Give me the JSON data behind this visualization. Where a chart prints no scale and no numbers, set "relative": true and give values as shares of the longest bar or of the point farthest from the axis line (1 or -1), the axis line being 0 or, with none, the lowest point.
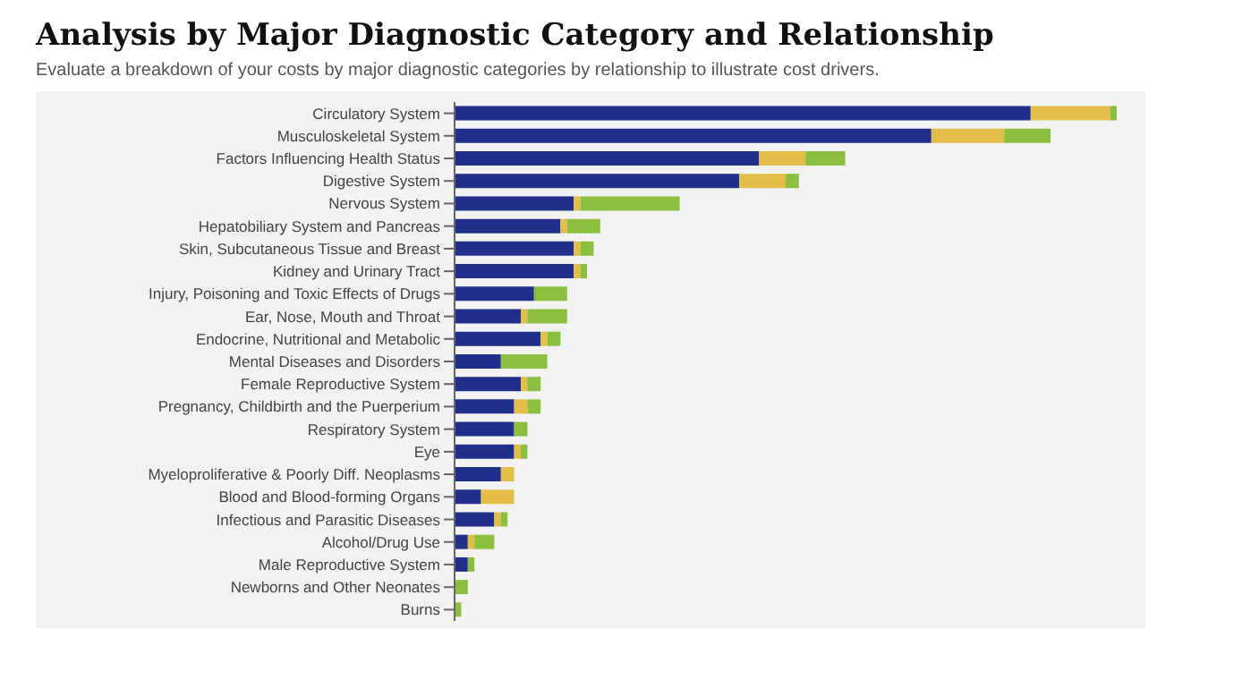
{
  "chart_data": {
    "type": "bar",
    "orientation": "horizontal",
    "stacked": true,
    "relative": true,
    "title": "Analysis by Major Diagnostic Category and Relationship",
    "subtitle": "Evaluate a breakdown of your costs by major diagnostic categories by relationship to illustrate cost drivers.",
    "categories": [
      "Circulatory System",
      "Musculoskeletal System",
      "Factors Influencing Health Status",
      "Digestive System",
      "Nervous System",
      "Hepatobiliary System and Pancreas",
      "Skin, Subcutaneous Tissue and Breast",
      "Kidney and Urinary Tract",
      "Injury, Poisoning and Toxic Effects of Drugs",
      "Ear, Nose, Mouth and Throat",
      "Endocrine, Nutritional and Metabolic",
      "Mental Diseases and Disorders",
      "Female Reproductive System",
      "Pregnancy, Childbirth and the Puerperium",
      "Respiratory System",
      "Eye",
      "Myeloproliferative & Poorly Diff. Neoplasms",
      "Blood and Blood-forming Organs",
      "Infectious and Parasitic Diseases",
      "Alcohol/Drug Use",
      "Male Reproductive System",
      "Newborns and Other Neonates",
      "Burns"
    ],
    "series": [
      {
        "color": "#1f2f8a",
        "values": [
          0.87,
          0.72,
          0.46,
          0.43,
          0.18,
          0.16,
          0.18,
          0.18,
          0.12,
          0.1,
          0.13,
          0.07,
          0.1,
          0.09,
          0.09,
          0.09,
          0.07,
          0.04,
          0.06,
          0.02,
          0.02,
          0,
          0
        ]
      },
      {
        "color": "#e3bf4a",
        "values": [
          0.12,
          0.11,
          0.07,
          0.07,
          0.01,
          0.01,
          0.01,
          0.01,
          0,
          0.01,
          0.01,
          0,
          0.01,
          0.02,
          0,
          0.01,
          0.02,
          0.05,
          0.01,
          0.01,
          0,
          0,
          0
        ]
      },
      {
        "color": "#8cbf3f",
        "values": [
          0.01,
          0.07,
          0.06,
          0.02,
          0.15,
          0.05,
          0.02,
          0.01,
          0.05,
          0.06,
          0.02,
          0.07,
          0.02,
          0.02,
          0.02,
          0.01,
          0,
          0,
          0.01,
          0.03,
          0.01,
          0.02,
          0.01
        ]
      }
    ]
  }
}
